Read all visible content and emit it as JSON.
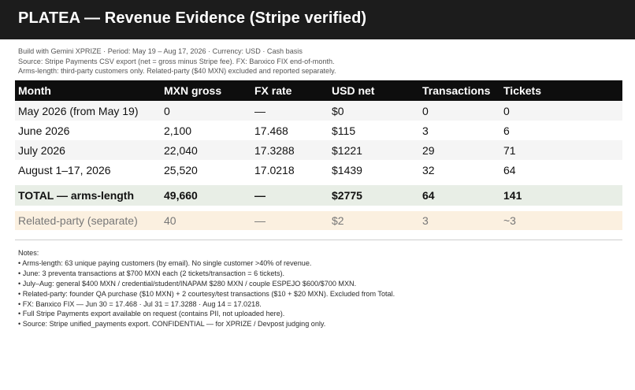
{
  "header": {
    "title": "PLATEA — Revenue Evidence (Stripe verified)"
  },
  "meta": {
    "line1": "Build with Gemini XPRIZE · Period: May 19 – Aug 17, 2026 · Currency: USD · Cash basis",
    "line2": "Source: Stripe Payments CSV export (net = gross minus Stripe fee). FX: Banxico FIX end-of-month.",
    "line3": "Arms-length: third-party customers only. Related-party ($40 MXN) excluded and reported separately."
  },
  "table": {
    "columns": [
      "Month",
      "MXN gross",
      "FX rate",
      "USD net",
      "Transactions",
      "Tickets"
    ],
    "rows": [
      [
        "May 2026 (from May 19)",
        "0",
        "—",
        "$0",
        "0",
        "0"
      ],
      [
        "June 2026",
        "2,100",
        "17.468",
        "$115",
        "3",
        "6"
      ],
      [
        "July 2026",
        "22,040",
        "17.3288",
        "$1221",
        "29",
        "71"
      ],
      [
        "August 1–17, 2026",
        "25,520",
        "17.0218",
        "$1439",
        "32",
        "64"
      ]
    ],
    "total": [
      "TOTAL — arms-length",
      "49,660",
      "—",
      "$2775",
      "64",
      "141"
    ],
    "related": [
      "Related-party (separate)",
      "40",
      "—",
      "$2",
      "3",
      "~3"
    ]
  },
  "notes": {
    "heading": "Notes:",
    "items": [
      "• Arms-length: 63 unique paying customers (by email). No single customer >40% of revenue.",
      "• June: 3 preventa transactions at $700 MXN each (2 tickets/transaction = 6 tickets).",
      "• July–Aug: general $400 MXN / credential/student/INAPAM $280 MXN / couple ESPEJO $600/$700 MXN.",
      "• Related-party: founder QA purchase ($10 MXN) + 2 courtesy/test transactions ($10 + $20 MXN). Excluded from Total.",
      "• FX: Banxico FIX — Jun 30 = 17.468 · Jul 31 = 17.3288 · Aug 14 = 17.0218.",
      "• Full Stripe Payments export available on request (contains PII, not uploaded here).",
      "• Source: Stripe unified_payments export. CONFIDENTIAL — for XPRIZE / Devpost judging only."
    ]
  }
}
